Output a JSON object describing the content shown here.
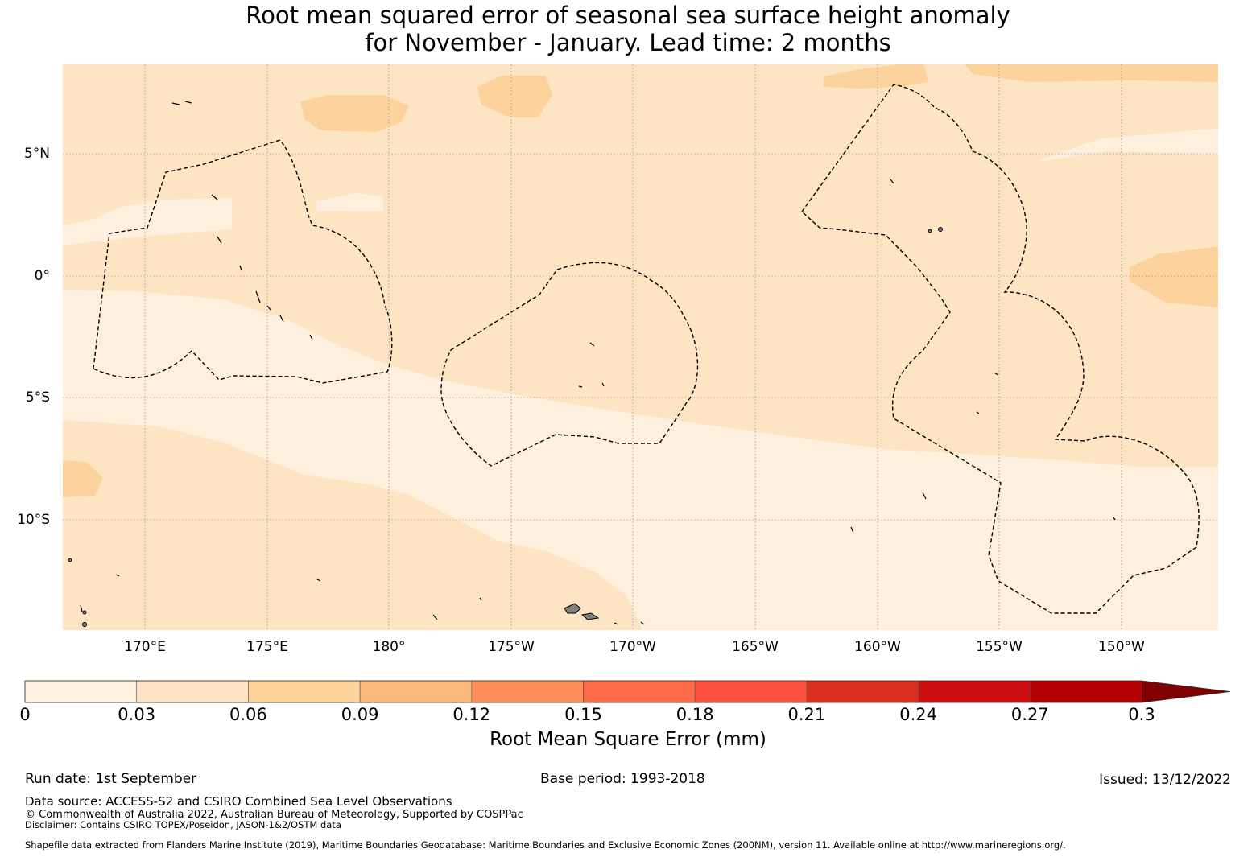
{
  "title": {
    "line1": "Root mean squared error of seasonal sea surface height anomaly",
    "line2": "for November - January. Lead time: 2 months"
  },
  "map": {
    "lat_ticks": [
      "5°N",
      "0°",
      "5°S",
      "10°S"
    ],
    "lon_ticks": [
      "170°E",
      "175°E",
      "180°",
      "175°W",
      "170°W",
      "165°W",
      "160°W",
      "155°W",
      "150°W"
    ],
    "colors": {
      "level_0_03": "#fef0dc",
      "level_0_06": "#fde5c4",
      "level_0_09": "#fcd39d",
      "land": "#808080",
      "eez_line": "#000000",
      "gridline": "#8c8c8c"
    }
  },
  "colorbar": {
    "title": "Root Mean Square Error (mm)",
    "labels": [
      "0",
      "0.03",
      "0.06",
      "0.09",
      "0.12",
      "0.15",
      "0.18",
      "0.21",
      "0.24",
      "0.27",
      "0.3"
    ],
    "colors": [
      "#fff2df",
      "#fee5c5",
      "#fed399",
      "#fdb87c",
      "#fc8d59",
      "#fd6b48",
      "#fd5140",
      "#da2e1f",
      "#cb0d10",
      "#b20000",
      "#7f0000"
    ],
    "extend": "max"
  },
  "footer": {
    "run_date": "Run date: 1st September",
    "base_period": "Base period: 1993-2018",
    "issued": "Issued: 13/12/2022",
    "data_source": "Data source: ACCESS-S2 and CSIRO Combined Sea Level Observations",
    "copyright": "© Commonwealth of Australia 2022, Australian Bureau of Meteorology, Supported by COSPPac",
    "disclaimer": "Disclaimer: Contains CSIRO TOPEX/Poseidon, JASON-1&2/OSTM data",
    "shapefile": "Shapefile data extracted from Flanders Marine Institute (2019), Maritime Boundaries Geodatabase: Maritime Boundaries and Exclusive Economic Zones (200NM), version 11. Available online at http://www.marineregions.org/."
  }
}
